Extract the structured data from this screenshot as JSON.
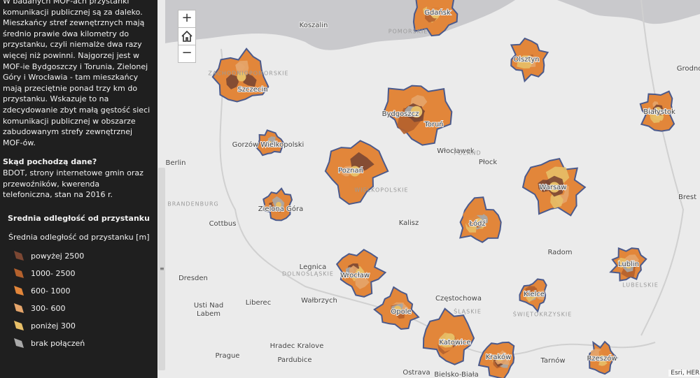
{
  "panel": {
    "description": "W badanych MOF-ach przystanki komunikacji publicznej są za daleko. Mieszkańcy stref zewnętrznych mają średnio prawie dwa kilometry do przystanku, czyli niemalże dwa razy więcej niż powinni. Najgorzej jest w MOF-ie Bydgoszczy i Torunia, Zielonej Góry i Wrocławia - tam mieszkańcy mają przeciętnie ponad trzy km do przystanku. Wskazuje to na zdecydowanie zbyt małą gęstość sieci komunikacji publicznej w obszarze zabudowanym strefy zewnętrznej MOF-ów.",
    "source_heading": "Skąd pochodzą dane?",
    "source_text": "BDOT, strony internetowe gmin oraz przewoźników, kwerenda telefoniczna, stan na 2016 r."
  },
  "legend": {
    "heading": "Srednia odległość od przystanku",
    "title": "Średnia odległość od przystanku [m]",
    "items": [
      {
        "label": "powyżej 2500",
        "color": "#7b4733"
      },
      {
        "label": "1000- 2500",
        "color": "#b4612d"
      },
      {
        "label": "600- 1000",
        "color": "#e2863a"
      },
      {
        "label": "300- 600",
        "color": "#e5a56b"
      },
      {
        "label": "poniżej 300",
        "color": "#e7bf68"
      },
      {
        "label": "brak połączeń",
        "color": "#a9a9a9"
      }
    ]
  },
  "controls": {
    "zoom_in": "+",
    "zoom_out": "−"
  },
  "map_labels": [
    "Koszalin",
    "Gdańsk",
    "Olsztyn",
    "Grodno",
    "Szczecin",
    "Bydgoszcz",
    "Toruń",
    "Białystok",
    "Gorzów Wielkopolski",
    "Berlin",
    "Włocławek",
    "Płock",
    "Poznań",
    "Warsaw",
    "Brest",
    "Zielona Góra",
    "Cottbus",
    "Kalisz",
    "Łódź",
    "Radom",
    "Lublin",
    "Legnica",
    "Wrocław",
    "Dresden",
    "Kielce",
    "Częstochowa",
    "Usti Nad Labem",
    "Liberec",
    "Wałbrzych",
    "Opole",
    "Katowice",
    "Hradec Kralove",
    "Prague",
    "Pardubice",
    "Kraków",
    "Tarnów",
    "Rzeszów",
    "Ostrava",
    "Bielsko-Biała"
  ],
  "region_labels": [
    "ZACHODNIOPOMORSKIE",
    "POMORSKIE",
    "BRANDENBURG",
    "POLAND",
    "DOLNOŚLĄSKIE",
    "ŚLĄSKIE",
    "LUBELSKIE",
    "ŚWIĘTOKRZYSKIE",
    "WIELKOPOLSKIE"
  ],
  "attribution": "Esri, HERE"
}
